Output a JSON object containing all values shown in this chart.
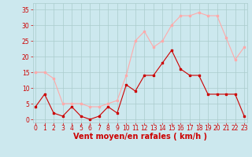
{
  "hours": [
    0,
    1,
    2,
    3,
    4,
    5,
    6,
    7,
    8,
    9,
    10,
    11,
    12,
    13,
    14,
    15,
    16,
    17,
    18,
    19,
    20,
    21,
    22,
    23
  ],
  "vent_moyen": [
    4,
    8,
    2,
    1,
    4,
    1,
    0,
    1,
    4,
    2,
    11,
    9,
    14,
    14,
    18,
    22,
    16,
    14,
    14,
    8,
    8,
    8,
    8,
    1
  ],
  "rafales": [
    15,
    15,
    13,
    5,
    5,
    5,
    4,
    4,
    5,
    6,
    14,
    25,
    28,
    23,
    25,
    30,
    33,
    33,
    34,
    33,
    33,
    26,
    19,
    23
  ],
  "color_moyen": "#cc0000",
  "color_rafales": "#ffaaaa",
  "bg_color": "#cce8ee",
  "grid_color": "#aacccc",
  "xlabel": "Vent moyen/en rafales ( km/h )",
  "ylim": [
    -1,
    37
  ],
  "xlim": [
    -0.3,
    23.3
  ],
  "yticks": [
    0,
    5,
    10,
    15,
    20,
    25,
    30,
    35
  ],
  "axis_fontsize": 5.5,
  "label_fontsize": 7
}
